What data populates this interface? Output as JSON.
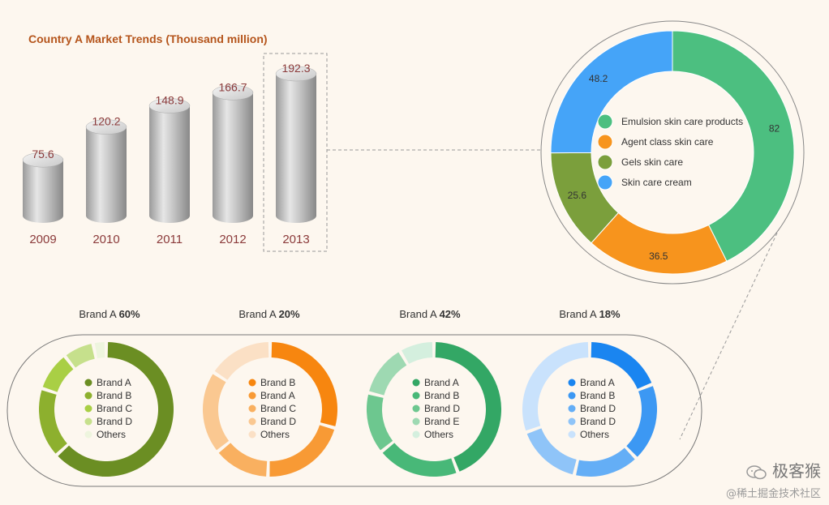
{
  "chart_data": [
    {
      "type": "bar",
      "style": "3d-cylinder",
      "title": "Country A Market Trends (Thousand million)",
      "categories": [
        "2009",
        "2010",
        "2011",
        "2012",
        "2013"
      ],
      "values": [
        75.6,
        120.2,
        148.9,
        166.7,
        192.3
      ],
      "highlighted": "2013",
      "ylim": [
        0,
        200
      ]
    },
    {
      "type": "pie",
      "style": "donut",
      "labels": [
        "Emulsion skin care products",
        "Agent class skin care",
        "Gels skin care",
        "Skin care cream"
      ],
      "values": [
        82,
        36.5,
        25.6,
        48.2
      ],
      "colors": [
        "#4cbf80",
        "#f7941d",
        "#7b9f3c",
        "#45a4f8"
      ],
      "legend": "center"
    },
    {
      "type": "pie",
      "style": "donut",
      "title": "Brand A",
      "title_value": "60%",
      "labels": [
        "Brand A",
        "Brand B",
        "Brand C",
        "Brand D",
        "Others"
      ],
      "values": [
        60,
        16,
        9,
        7,
        3
      ],
      "colors": [
        "#6b8e23",
        "#8db02e",
        "#a9cf45",
        "#c6e08c",
        "#eef5de"
      ]
    },
    {
      "type": "pie",
      "style": "donut",
      "title": "Brand A",
      "title_value": "20%",
      "labels": [
        "Brand B",
        "Brand A",
        "Brand C",
        "Brand D",
        "Others"
      ],
      "values": [
        28,
        20,
        13,
        19,
        15
      ],
      "colors": [
        "#f7860f",
        "#f89a35",
        "#f9b060",
        "#fac891",
        "#fbe0c5"
      ]
    },
    {
      "type": "pie",
      "style": "donut",
      "title": "Brand A",
      "title_value": "42%",
      "labels": [
        "Brand A",
        "Brand B",
        "Brand D",
        "Brand E",
        "Others"
      ],
      "values": [
        42,
        19,
        14,
        12,
        8
      ],
      "colors": [
        "#33a765",
        "#48b878",
        "#6dc78f",
        "#9ed9b2",
        "#d4efde"
      ]
    },
    {
      "type": "pie",
      "style": "donut",
      "title": "Brand A",
      "title_value": "18%",
      "labels": [
        "Brand A",
        "Brand B",
        "Brand D",
        "Brand D",
        "Others"
      ],
      "values": [
        18,
        18,
        15,
        15,
        29
      ],
      "colors": [
        "#1a85f0",
        "#3c98f3",
        "#64aef6",
        "#8fc4f8",
        "#c9e2fc"
      ]
    }
  ],
  "watermark": {
    "name": "极客猴",
    "sub": "@稀土掘金技术社区"
  }
}
